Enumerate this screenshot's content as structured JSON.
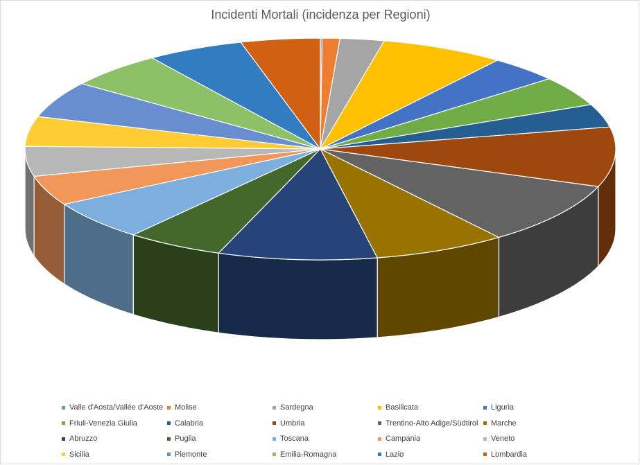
{
  "chart_data": {
    "type": "pie",
    "title": "Incidenti Mortali (incidenza per Regioni)",
    "legend_position": "bottom",
    "slices": [
      {
        "label": "Valle d'Aosta/Vallée d'Aoste",
        "value": 0.1,
        "color": "#5b9bd5"
      },
      {
        "label": "Molise",
        "value": 1.0,
        "color": "#ed7d31"
      },
      {
        "label": "Sardegna",
        "value": 2.5,
        "color": "#a5a5a5"
      },
      {
        "label": "Basilicata",
        "value": 7.0,
        "color": "#ffc000"
      },
      {
        "label": "Liguria",
        "value": 4.0,
        "color": "#4472c4"
      },
      {
        "label": "Friuli-Venezia Giulia",
        "value": 4.5,
        "color": "#70ad47"
      },
      {
        "label": "Calabria",
        "value": 3.5,
        "color": "#255e91"
      },
      {
        "label": "Umbria",
        "value": 9.0,
        "color": "#9e480e"
      },
      {
        "label": "Trentino-Alto Adige/Südtirol",
        "value": 9.5,
        "color": "#636363"
      },
      {
        "label": "Marche",
        "value": 7.5,
        "color": "#997300"
      },
      {
        "label": "Abruzzo",
        "value": 9.0,
        "color": "#264478"
      },
      {
        "label": "Puglia",
        "value": 5.5,
        "color": "#43682b"
      },
      {
        "label": "Toscana",
        "value": 6.0,
        "color": "#7cafdd"
      },
      {
        "label": "Campania",
        "value": 4.5,
        "color": "#f1975a"
      },
      {
        "label": "Veneto",
        "value": 4.5,
        "color": "#b7b7b7"
      },
      {
        "label": "Sicilia",
        "value": 4.5,
        "color": "#ffcd33"
      },
      {
        "label": "Piemonte",
        "value": 5.5,
        "color": "#698ed0"
      },
      {
        "label": "Emilia-Romagna",
        "value": 5.5,
        "color": "#8cc168"
      },
      {
        "label": "Lazio",
        "value": 5.5,
        "color": "#327dc2"
      },
      {
        "label": "Lombardia",
        "value": 4.5,
        "color": "#d26012"
      }
    ]
  }
}
